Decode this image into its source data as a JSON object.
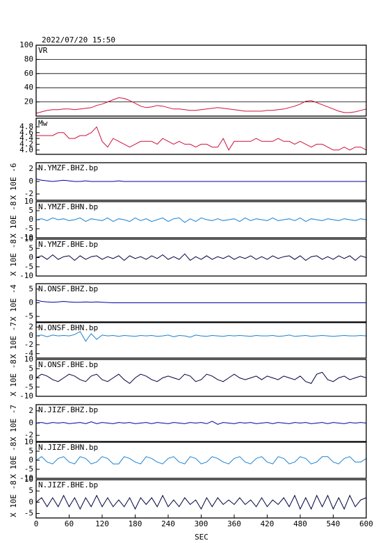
{
  "chart_data": {
    "type": "line",
    "title": "2022/07/20 15:50",
    "xlabel": "SEC",
    "xlim": [
      0,
      600
    ],
    "xticks": [
      0,
      60,
      120,
      180,
      240,
      300,
      360,
      420,
      480,
      540,
      600
    ],
    "x": [
      0,
      10,
      20,
      30,
      40,
      50,
      60,
      70,
      80,
      90,
      100,
      110,
      120,
      130,
      140,
      150,
      160,
      170,
      180,
      190,
      200,
      210,
      220,
      230,
      240,
      250,
      260,
      270,
      280,
      290,
      300,
      310,
      320,
      330,
      340,
      350,
      360,
      370,
      380,
      390,
      400,
      410,
      420,
      430,
      440,
      450,
      460,
      470,
      480,
      490,
      500,
      510,
      520,
      530,
      540,
      550,
      560,
      570,
      580,
      590,
      600
    ],
    "panels": [
      {
        "title": "VR",
        "color": "#d0103a",
        "grid": true,
        "ylim": [
          0,
          100
        ],
        "yticks": [
          20,
          40,
          60,
          80,
          100
        ],
        "values": [
          4,
          6,
          8,
          9,
          9,
          10,
          10,
          9,
          10,
          11,
          12,
          15,
          17,
          20,
          23,
          26,
          25,
          22,
          18,
          14,
          12,
          13,
          15,
          14,
          12,
          10,
          10,
          9,
          8,
          8,
          9,
          10,
          11,
          12,
          11,
          10,
          9,
          8,
          7,
          7,
          7,
          7,
          8,
          8,
          9,
          10,
          12,
          14,
          17,
          21,
          22,
          19,
          16,
          13,
          10,
          7,
          5,
          5,
          6,
          8,
          10
        ]
      },
      {
        "title": "Mw",
        "color": "#d0103a",
        "grid": false,
        "ylim": [
          3.85,
          5.1
        ],
        "yticks": [
          {
            "value": 4,
            "label": "4.0"
          },
          4.2,
          4.4,
          4.6,
          4.8
        ],
        "values": [
          4.5,
          4.5,
          4.5,
          4.5,
          4.6,
          4.6,
          4.4,
          4.4,
          4.5,
          4.5,
          4.6,
          4.8,
          4.3,
          4.1,
          4.4,
          4.3,
          4.2,
          4.1,
          4.2,
          4.3,
          4.3,
          4.3,
          4.2,
          4.4,
          4.3,
          4.2,
          4.3,
          4.2,
          4.2,
          4.1,
          4.2,
          4.2,
          4.1,
          4.1,
          4.4,
          4.0,
          4.3,
          4.3,
          4.3,
          4.3,
          4.4,
          4.3,
          4.3,
          4.3,
          4.4,
          4.3,
          4.3,
          4.2,
          4.3,
          4.2,
          4.1,
          4.2,
          4.2,
          4.1,
          4.0,
          4.0,
          4.1,
          4.0,
          4.1,
          4.1,
          4.0
        ]
      },
      {
        "title": "N.YMZF.BHZ.bp",
        "ylabel": "X 10E -6",
        "color": "#0000a0",
        "grid": false,
        "ylim": [
          -3,
          3
        ],
        "yticks": [
          -2,
          0,
          2
        ],
        "values": [
          0.4,
          0.2,
          0.1,
          0,
          0.1,
          0.2,
          0.1,
          0,
          0,
          0.1,
          0,
          0,
          0,
          0,
          0,
          0.1,
          0,
          0,
          0,
          0,
          0,
          0,
          0,
          0,
          0,
          0,
          0,
          0,
          0,
          0,
          0,
          0,
          0,
          0,
          0,
          0,
          0,
          0,
          0,
          0,
          0,
          0,
          0,
          0,
          0,
          0,
          0,
          0,
          0,
          0,
          0,
          0,
          0,
          0,
          0,
          0,
          0,
          0,
          0,
          0,
          0
        ]
      },
      {
        "title": "N.YMZF.BHN.bp",
        "ylabel": "X 10E -8",
        "color": "#1a80d0",
        "grid": false,
        "ylim": [
          -10,
          10
        ],
        "yticks": [
          -10,
          -5,
          0,
          5,
          10
        ],
        "values": [
          0,
          0.5,
          -0.5,
          1,
          0,
          0.5,
          -0.5,
          0,
          1,
          -1,
          0.5,
          0,
          -0.5,
          1,
          -1,
          0.5,
          0,
          -1,
          1,
          -0.5,
          0.5,
          -1,
          0,
          1,
          -1,
          0.5,
          1,
          -1.5,
          0.5,
          -1,
          1,
          0,
          -0.5,
          0.5,
          -0.5,
          0,
          0.5,
          -1,
          1,
          -0.5,
          0.5,
          0,
          -0.5,
          1,
          -0.5,
          0,
          0.5,
          -0.5,
          1,
          -1,
          0.5,
          0,
          -0.5,
          0.5,
          0,
          -0.5,
          0.5,
          0,
          -0.5,
          0.5,
          0
        ]
      },
      {
        "title": "N.YMZF.BHE.bp",
        "ylabel": "X 10E -8",
        "color": "#000040",
        "grid": false,
        "ylim": [
          -10,
          10
        ],
        "yticks": [
          -10,
          -5,
          0,
          5,
          10
        ],
        "values": [
          0,
          1,
          -1,
          1.5,
          -1,
          0.5,
          1,
          -1.5,
          1,
          -1,
          0.5,
          1,
          -1,
          0.5,
          -0.5,
          1,
          -1.5,
          1,
          -0.5,
          0.5,
          -1,
          1,
          -0.5,
          1.5,
          -1,
          0.5,
          -1,
          2,
          -1.5,
          0.5,
          -1,
          1,
          -1,
          0.5,
          -0.5,
          1,
          -1,
          0.5,
          -0.5,
          1,
          -1,
          0.5,
          -1,
          1,
          -0.5,
          0.5,
          1,
          -1,
          1,
          -1.5,
          0.5,
          1,
          -1,
          0.5,
          -1,
          1,
          -0.5,
          1,
          -1.5,
          1,
          0
        ]
      },
      {
        "title": "N.ONSF.BHZ.bp",
        "ylabel": "X 10E -4",
        "color": "#0000a0",
        "grid": false,
        "ylim": [
          -7,
          7
        ],
        "yticks": [
          -5,
          0,
          5
        ],
        "values": [
          1,
          0.5,
          0.3,
          0.2,
          0.3,
          0.5,
          0.3,
          0.2,
          0.2,
          0.3,
          0.2,
          0.3,
          0.2,
          0.1,
          0,
          0,
          0,
          0,
          0,
          0,
          0,
          0,
          0,
          0,
          0,
          0,
          0,
          0,
          0,
          0,
          0,
          0,
          0,
          0,
          0,
          0,
          0,
          0,
          0,
          0,
          0,
          0,
          0,
          0,
          0,
          0,
          0,
          0,
          0,
          0,
          0,
          0,
          0,
          0,
          0,
          0,
          0,
          0,
          0,
          0,
          0
        ]
      },
      {
        "title": "N.ONSF.BHN.bp",
        "ylabel": "X 10E -7",
        "color": "#1a80d0",
        "grid": false,
        "ylim": [
          -5,
          3
        ],
        "yticks": [
          -4,
          -2,
          0,
          2
        ],
        "values": [
          0,
          0.2,
          -0.2,
          0.2,
          0,
          0.1,
          0,
          0.3,
          1,
          -1.2,
          0.5,
          -0.8,
          0.2,
          0,
          0.1,
          -0.1,
          0.1,
          0,
          -0.1,
          0.1,
          0,
          0.1,
          -0.1,
          0,
          0.2,
          -0.2,
          0.1,
          0,
          -0.3,
          0.2,
          0,
          -0.1,
          0.1,
          0,
          -0.1,
          0.1,
          0,
          0.1,
          0,
          -0.1,
          0.1,
          0,
          0,
          0.1,
          -0.1,
          0,
          0.2,
          -0.1,
          0,
          0.1,
          -0.1,
          0,
          0.1,
          0,
          -0.1,
          0,
          0.1,
          0,
          0,
          0.1,
          0
        ]
      },
      {
        "title": "N.ONSF.BHE.bp",
        "ylabel": "X 10E -8",
        "color": "#000040",
        "grid": false,
        "ylim": [
          -10,
          10
        ],
        "yticks": [
          -10,
          -5,
          0,
          5,
          10
        ],
        "values": [
          0,
          2,
          1,
          -1,
          -2,
          0,
          2,
          1,
          -1,
          -2,
          1,
          2,
          -1,
          -2,
          0,
          2,
          -1,
          -3,
          0,
          2,
          1,
          -1,
          -2,
          0,
          1,
          0,
          -1,
          2,
          1,
          -2,
          -1,
          2,
          1,
          -1,
          -2,
          0,
          2,
          0,
          -1,
          0,
          1,
          -1,
          1,
          0,
          -1,
          1,
          0,
          -1,
          1,
          -2,
          -3,
          2,
          3,
          -1,
          -2,
          0,
          1,
          -1,
          0,
          1,
          0
        ]
      },
      {
        "title": "N.JIZF.BHZ.bp",
        "ylabel": "X 10E -7",
        "color": "#0000a0",
        "grid": false,
        "ylim": [
          -3,
          3
        ],
        "yticks": [
          -2,
          0,
          2
        ],
        "values": [
          0,
          0.1,
          -0.1,
          0.1,
          0,
          0.1,
          -0.1,
          0,
          0.1,
          -0.1,
          0.2,
          -0.1,
          0.1,
          0,
          -0.1,
          0.1,
          0,
          0.1,
          -0.1,
          0,
          0.1,
          -0.1,
          0.1,
          0,
          -0.1,
          0.1,
          0,
          -0.1,
          0.1,
          0,
          0.1,
          -0.1,
          0.3,
          -0.2,
          0.1,
          0,
          -0.1,
          0.1,
          0,
          0.1,
          -0.1,
          0,
          0.1,
          -0.1,
          0.1,
          0,
          -0.1,
          0.1,
          0,
          0.1,
          -0.1,
          0,
          0.1,
          -0.1,
          0.1,
          0,
          -0.1,
          0.1,
          0,
          0.1,
          0
        ]
      },
      {
        "title": "N.JIZF.BHN.bp",
        "ylabel": "X 10E -8",
        "color": "#1a80d0",
        "grid": false,
        "ylim": [
          -10,
          10
        ],
        "yticks": [
          -10,
          -5,
          0,
          5,
          10
        ],
        "values": [
          0,
          2,
          -1,
          -2,
          1,
          2,
          -1,
          -2,
          2,
          1,
          -2,
          -1,
          2,
          1,
          -2,
          -2,
          2,
          1,
          -1,
          -2,
          2,
          1,
          -1,
          -2,
          1,
          2,
          -1,
          -2,
          2,
          1,
          -2,
          -1,
          2,
          1,
          -1,
          -2,
          1,
          2,
          -1,
          -2,
          1,
          2,
          -1,
          -2,
          2,
          1,
          -2,
          -1,
          2,
          1,
          -2,
          -1,
          2,
          2,
          -1,
          -2,
          1,
          2,
          -1,
          -1,
          1
        ]
      },
      {
        "title": "N.JIZF.BHE.bp",
        "ylabel": "X 10E -8",
        "color": "#000040",
        "grid": false,
        "ylim": [
          -7,
          10
        ],
        "yticks": [
          -5,
          0,
          5,
          10
        ],
        "values": [
          0,
          2,
          -2,
          2,
          -2,
          3,
          -2,
          2,
          -3,
          2,
          -2,
          3,
          -2,
          2,
          -2,
          1,
          -2,
          2,
          -3,
          2,
          -1,
          2,
          -2,
          3,
          -2,
          1,
          -2,
          2,
          -1,
          1,
          -3,
          2,
          -2,
          2,
          -1,
          1,
          -1,
          2,
          -1,
          1,
          -2,
          2,
          -2,
          1,
          -1,
          2,
          -2,
          3,
          -3,
          2,
          -3,
          3,
          -2,
          3,
          -3,
          2,
          -3,
          3,
          -2,
          1,
          2
        ]
      }
    ]
  }
}
